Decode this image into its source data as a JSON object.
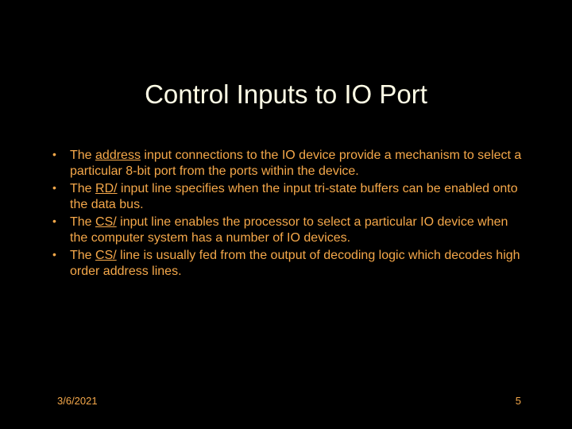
{
  "slide": {
    "title": "Control Inputs to IO Port",
    "bullets": [
      {
        "prefix": "The ",
        "underlined": "address",
        "suffix": " input connections to the IO device provide a mechanism to select a particular 8-bit port from the ports within the device."
      },
      {
        "prefix": "The ",
        "underlined": "RD/",
        "suffix": " input line specifies when the input tri-state buffers can be enabled onto the data bus."
      },
      {
        "prefix": "The ",
        "underlined": "CS/",
        "suffix": " input line enables the processor to select a particular IO device when the computer system has a number of IO devices."
      },
      {
        "prefix": "The ",
        "underlined": "CS/",
        "suffix": " line is usually fed from the output of decoding logic which decodes high order address lines."
      }
    ],
    "date": "3/6/2021",
    "page": "5",
    "colors": {
      "background": "#000000",
      "title_color": "#fffde6",
      "body_color": "#f5a84a"
    },
    "fontsize": {
      "title": 33,
      "body": 16,
      "footer": 13
    }
  }
}
